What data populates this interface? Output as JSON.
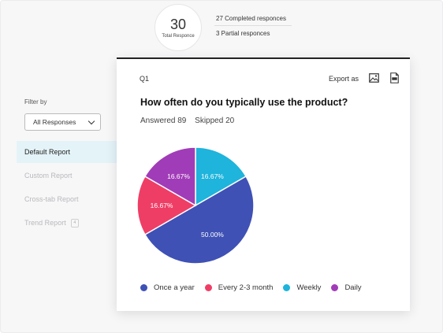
{
  "summary": {
    "total": "30",
    "total_label": "Total Responce",
    "completed": "27 Completed responces",
    "partial": "3 Partial responces"
  },
  "sidebar": {
    "filter_label": "Filter by",
    "filter_value": "All Responses",
    "items": [
      {
        "label": "Default Report"
      },
      {
        "label": "Custom Report"
      },
      {
        "label": "Cross-tab Report"
      },
      {
        "label": "Trend Report",
        "badge": "4"
      }
    ]
  },
  "question": {
    "number": "Q1",
    "export_label": "Export as",
    "title": "How often do you typically use the product?",
    "answered": "Answered 89",
    "skipped": "Skipped 20"
  },
  "colors": {
    "once_a_year": "#3f51b5",
    "every_2_3_month": "#ef3e66",
    "weekly": "#1eb4dc",
    "daily": "#a13cb8"
  },
  "chart_data": {
    "type": "pie",
    "categories": [
      "Once a year",
      "Every 2-3 month",
      "Weekly",
      "Daily"
    ],
    "values": [
      50.0,
      16.67,
      16.67,
      16.67
    ],
    "data_labels": [
      "50.00%",
      "16.67%",
      "16.67%",
      "16.67%"
    ],
    "colors": [
      "#3f51b5",
      "#ef3e66",
      "#1eb4dc",
      "#a13cb8"
    ],
    "legend_position": "bottom"
  }
}
